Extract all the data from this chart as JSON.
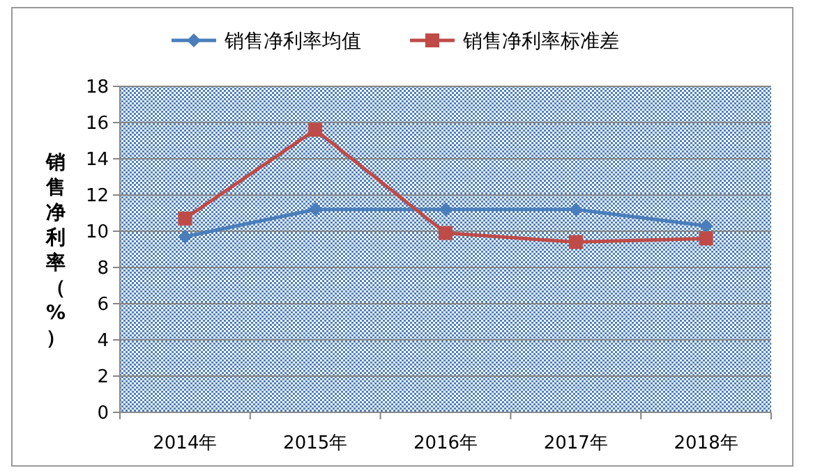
{
  "chart_data": {
    "type": "line",
    "categories": [
      "2014年",
      "2015年",
      "2016年",
      "2017年",
      "2018年"
    ],
    "series": [
      {
        "name": "销售净利率均值",
        "color": "#4a7ebb",
        "marker": "diamond",
        "values": [
          9.7,
          11.2,
          11.2,
          11.2,
          10.3
        ]
      },
      {
        "name": "销售净利率标准差",
        "color": "#be4b48",
        "marker": "square",
        "values": [
          10.7,
          15.6,
          9.9,
          9.4,
          9.6
        ]
      }
    ],
    "ylabel": "销售净利率（%）",
    "ylim": [
      0,
      18
    ],
    "yticks": [
      0,
      2,
      4,
      6,
      8,
      10,
      12,
      14,
      16,
      18
    ],
    "grid": "y",
    "legend": "top"
  }
}
